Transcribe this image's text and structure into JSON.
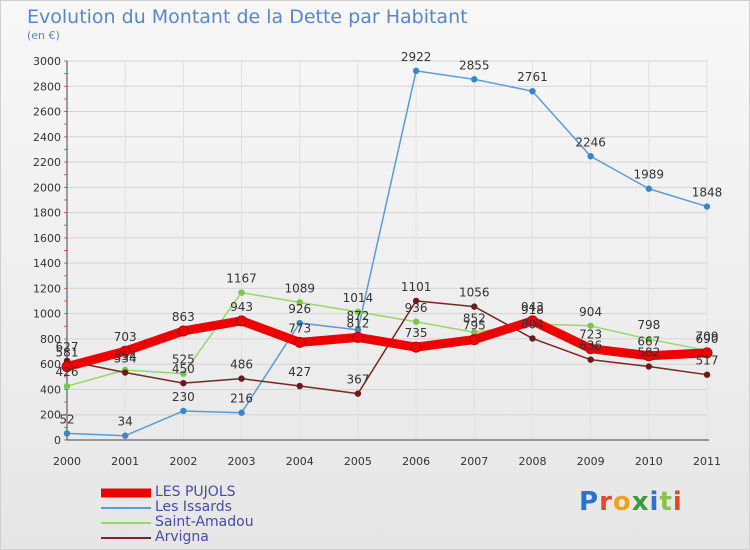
{
  "title": "Evolution du Montant de la Dette par Habitant",
  "subtitle": "(en €)",
  "brand": {
    "text": "Proxiti",
    "letter_colors": [
      "#2f73c8",
      "#e8462a",
      "#f0a21c",
      "#3a9b3a",
      "#2f73c8",
      "#8bc34a",
      "#e8462a"
    ]
  },
  "chart_data": {
    "type": "line",
    "title": "Evolution du Montant de la Dette par Habitant",
    "ylabel": "(en €)",
    "xlabel": "",
    "ylim": [
      0,
      3000
    ],
    "grid": true,
    "legend_position": "bottom-left",
    "x": [
      "2000",
      "2001",
      "2002",
      "2003",
      "2004",
      "2005",
      "2006",
      "2007",
      "2008",
      "2009",
      "2010",
      "2011"
    ],
    "yticks": [
      0,
      200,
      400,
      600,
      800,
      1000,
      1200,
      1400,
      1600,
      1800,
      2000,
      2200,
      2400,
      2600,
      2800,
      3000
    ],
    "series": [
      {
        "name": "Les Issards",
        "color": "#5b9bd5",
        "marker": "#3a86c8",
        "values": [
          52,
          34,
          230,
          216,
          926,
          872,
          2922,
          2855,
          2761,
          2246,
          1989,
          1848
        ]
      },
      {
        "name": "Saint-Amadou",
        "color": "#9ad66a",
        "marker": "#7cc546",
        "values": [
          426,
          554,
          525,
          1167,
          1089,
          1014,
          936,
          852,
          918,
          904,
          798,
          709
        ]
      },
      {
        "name": "Arvigna",
        "color": "#7a2424",
        "marker": "#6b1a1a",
        "values": [
          627,
          534,
          450,
          486,
          427,
          367,
          1101,
          1056,
          804,
          636,
          582,
          517
        ]
      },
      {
        "name": "LES PUJOLS",
        "color": "#ee0000",
        "marker": "#ee0000",
        "values": [
          581,
          703,
          863,
          943,
          773,
          812,
          735,
          795,
          943,
          723,
          667,
          690
        ]
      }
    ]
  }
}
